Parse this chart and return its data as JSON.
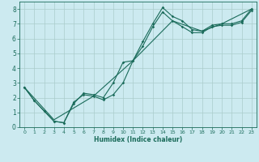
{
  "xlabel": "Humidex (Indice chaleur)",
  "bg_color": "#cceaf0",
  "grid_color": "#aacccc",
  "line_color": "#1a6b5a",
  "tick_color": "#1a6b5a",
  "xlim": [
    -0.5,
    23.5
  ],
  "ylim": [
    0,
    8.5
  ],
  "xticks": [
    0,
    1,
    2,
    3,
    4,
    5,
    6,
    7,
    8,
    9,
    10,
    11,
    12,
    13,
    14,
    15,
    16,
    17,
    18,
    19,
    20,
    21,
    22,
    23
  ],
  "yticks": [
    0,
    1,
    2,
    3,
    4,
    5,
    6,
    7,
    8
  ],
  "series1_x": [
    0,
    1,
    2,
    3,
    4,
    5,
    6,
    7,
    8,
    9,
    10,
    11,
    12,
    13,
    14,
    15,
    16,
    17,
    18,
    19,
    20,
    21,
    22,
    23
  ],
  "series1_y": [
    2.7,
    1.8,
    1.1,
    0.4,
    0.3,
    1.7,
    2.2,
    2.1,
    1.85,
    2.2,
    3.0,
    4.5,
    5.8,
    7.0,
    8.1,
    7.5,
    7.2,
    6.6,
    6.5,
    6.9,
    7.0,
    7.0,
    7.2,
    8.0
  ],
  "series2_x": [
    0,
    1,
    2,
    3,
    4,
    5,
    6,
    7,
    8,
    9,
    10,
    11,
    12,
    13,
    14,
    15,
    16,
    17,
    18,
    19,
    20,
    21,
    22,
    23
  ],
  "series2_y": [
    2.7,
    1.8,
    1.1,
    0.4,
    0.3,
    1.6,
    2.3,
    2.2,
    2.0,
    3.0,
    4.4,
    4.5,
    5.5,
    6.8,
    7.8,
    7.2,
    6.8,
    6.4,
    6.4,
    6.8,
    6.9,
    6.9,
    7.1,
    7.9
  ],
  "series3_x": [
    0,
    3,
    7,
    11,
    15,
    18,
    20,
    23
  ],
  "series3_y": [
    2.7,
    0.5,
    2.1,
    4.5,
    7.2,
    6.5,
    7.0,
    8.0
  ]
}
